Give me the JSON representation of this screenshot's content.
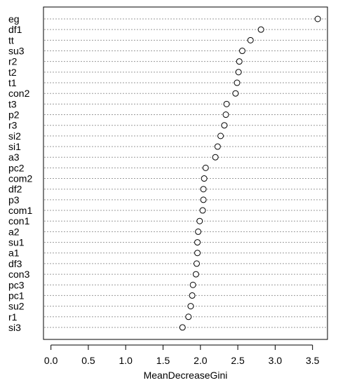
{
  "chart_data": {
    "type": "scatter",
    "style": "dotchart",
    "title": "",
    "xlabel": "MeanDecreaseGini",
    "ylabel": "",
    "xlim": [
      -0.1,
      3.7
    ],
    "x_ticks": [
      0.0,
      0.5,
      1.0,
      1.5,
      2.0,
      2.5,
      3.0,
      3.5
    ],
    "x_tick_labels": [
      "0.0",
      "0.5",
      "1.0",
      "1.5",
      "2.0",
      "2.5",
      "3.0",
      "3.5"
    ],
    "grid": "dotted horizontal guide lines",
    "categories": [
      "eg",
      "df1",
      "tt",
      "su3",
      "r2",
      "t2",
      "t1",
      "con2",
      "t3",
      "p2",
      "r3",
      "si2",
      "si1",
      "a3",
      "pc2",
      "com2",
      "df2",
      "p3",
      "com1",
      "con1",
      "a2",
      "su1",
      "a1",
      "df3",
      "con3",
      "pc3",
      "pc1",
      "su2",
      "r1",
      "si3"
    ],
    "values": [
      3.57,
      2.81,
      2.67,
      2.56,
      2.52,
      2.51,
      2.49,
      2.47,
      2.35,
      2.34,
      2.32,
      2.27,
      2.23,
      2.2,
      2.07,
      2.05,
      2.04,
      2.04,
      2.03,
      1.99,
      1.97,
      1.96,
      1.96,
      1.95,
      1.94,
      1.9,
      1.89,
      1.87,
      1.84,
      1.76
    ]
  }
}
